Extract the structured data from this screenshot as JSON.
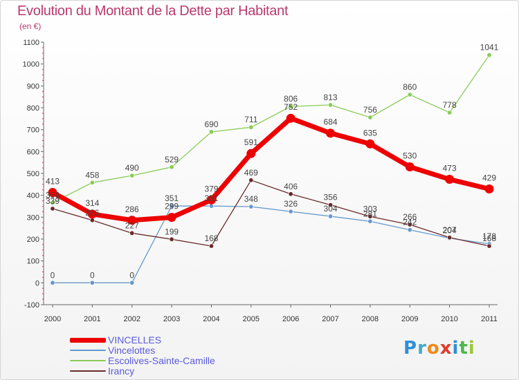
{
  "title": "Evolution du Montant de la Dette par Habitant",
  "unit": "(en €)",
  "brand": "Proxiti",
  "chart_data": {
    "type": "line",
    "title": "Evolution du Montant de la Dette par Habitant",
    "ylabel": "(en €)",
    "x": [
      "2000",
      "2001",
      "2002",
      "2003",
      "2004",
      "2005",
      "2006",
      "2007",
      "2008",
      "2009",
      "2010",
      "2011"
    ],
    "ylim": [
      -100,
      1100
    ],
    "yticks": [
      -100,
      0,
      100,
      200,
      300,
      400,
      500,
      600,
      700,
      800,
      900,
      1000,
      1100
    ],
    "grid": false,
    "legend_position": "bottom-left",
    "series": [
      {
        "name": "VINCELLES",
        "color": "#ee0000",
        "values": [
          413,
          314,
          286,
          299,
          379,
          591,
          752,
          684,
          635,
          530,
          473,
          429
        ]
      },
      {
        "name": "Vincelottes",
        "color": "#6699cc",
        "values": [
          0,
          0,
          0,
          351,
          351,
          348,
          326,
          304,
          281,
          242,
          204,
          178
        ]
      },
      {
        "name": "Escolives-Sainte-Camille",
        "color": "#88cc55",
        "values": [
          366,
          458,
          490,
          529,
          690,
          711,
          806,
          813,
          756,
          860,
          778,
          1041
        ]
      },
      {
        "name": "Irancy",
        "color": "#6b2a2a",
        "values": [
          339,
          286,
          227,
          199,
          168,
          469,
          406,
          356,
          303,
          266,
          207,
          168
        ]
      }
    ]
  }
}
